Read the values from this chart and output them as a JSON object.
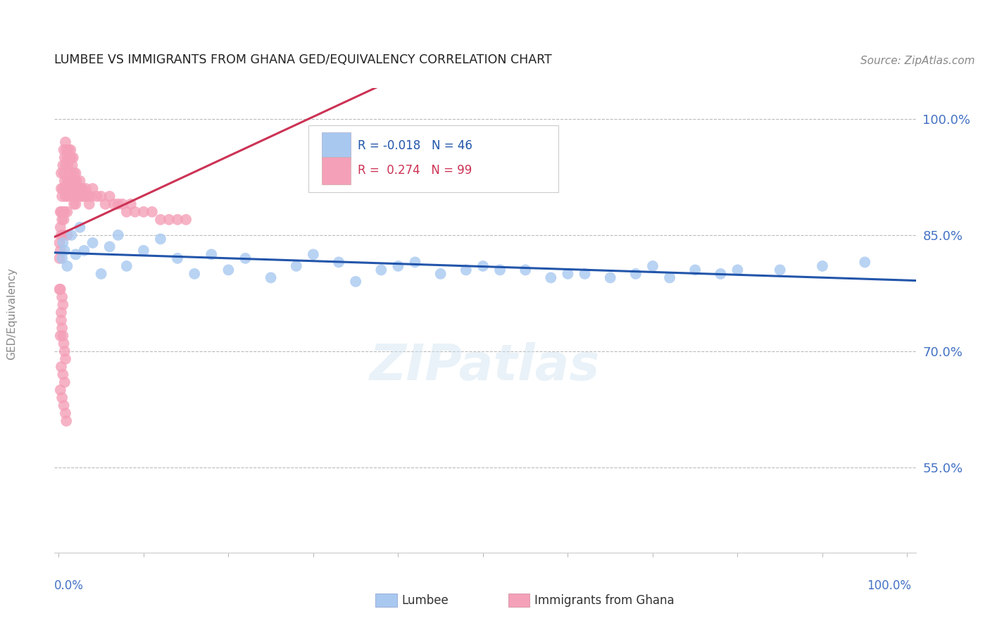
{
  "title": "LUMBEE VS IMMIGRANTS FROM GHANA GED/EQUIVALENCY CORRELATION CHART",
  "source": "Source: ZipAtlas.com",
  "ylabel": "GED/Equivalency",
  "legend_lumbee": "Lumbee",
  "legend_ghana": "Immigrants from Ghana",
  "R_lumbee": -0.018,
  "N_lumbee": 46,
  "R_ghana": 0.274,
  "N_ghana": 99,
  "yticks": [
    55.0,
    70.0,
    85.0,
    100.0
  ],
  "ymin": 44.0,
  "ymax": 104.0,
  "xmin": -0.5,
  "xmax": 101.0,
  "color_lumbee": "#A8C8F0",
  "color_ghana": "#F4A0B8",
  "trendline_lumbee": "#2255AA",
  "trendline_ghana": "#CC3355",
  "background_color": "#FFFFFF",
  "lumbee_x": [
    0.4,
    0.5,
    0.7,
    1.0,
    1.5,
    2.0,
    2.5,
    3.0,
    4.0,
    5.0,
    6.0,
    7.0,
    8.0,
    10.0,
    12.0,
    14.0,
    16.0,
    18.0,
    20.0,
    22.0,
    25.0,
    28.0,
    30.0,
    33.0,
    35.0,
    38.0,
    40.0,
    42.0,
    45.0,
    48.0,
    50.0,
    52.0,
    55.0,
    58.0,
    60.0,
    62.0,
    65.0,
    68.0,
    70.0,
    72.0,
    75.0,
    78.0,
    80.0,
    85.0,
    90.0,
    95.0
  ],
  "lumbee_y": [
    82.0,
    84.0,
    83.0,
    81.0,
    85.0,
    82.5,
    86.0,
    83.0,
    84.0,
    80.0,
    83.5,
    85.0,
    81.0,
    83.0,
    84.5,
    82.0,
    80.0,
    82.5,
    80.5,
    82.0,
    79.5,
    81.0,
    82.5,
    81.5,
    79.0,
    80.5,
    81.0,
    81.5,
    80.0,
    80.5,
    81.0,
    80.5,
    80.5,
    79.5,
    80.0,
    80.0,
    79.5,
    80.0,
    81.0,
    79.5,
    80.5,
    80.0,
    80.5,
    80.5,
    81.0,
    81.5
  ],
  "ghana_x": [
    0.1,
    0.1,
    0.1,
    0.2,
    0.2,
    0.2,
    0.3,
    0.3,
    0.3,
    0.3,
    0.4,
    0.4,
    0.5,
    0.5,
    0.5,
    0.5,
    0.6,
    0.6,
    0.6,
    0.7,
    0.7,
    0.7,
    0.8,
    0.8,
    0.8,
    0.9,
    0.9,
    1.0,
    1.0,
    1.0,
    1.0,
    1.1,
    1.1,
    1.2,
    1.2,
    1.3,
    1.3,
    1.4,
    1.4,
    1.5,
    1.5,
    1.6,
    1.6,
    1.7,
    1.7,
    1.8,
    1.8,
    1.9,
    2.0,
    2.0,
    2.1,
    2.2,
    2.3,
    2.4,
    2.5,
    2.6,
    2.7,
    2.8,
    3.0,
    3.2,
    3.4,
    3.6,
    3.8,
    4.0,
    4.5,
    5.0,
    5.5,
    6.0,
    6.5,
    7.0,
    7.5,
    8.0,
    8.5,
    9.0,
    10.0,
    11.0,
    12.0,
    13.0,
    14.0,
    15.0,
    0.2,
    0.3,
    0.4,
    0.5,
    0.3,
    0.2,
    0.4,
    0.6,
    0.5,
    0.7,
    0.8,
    0.3,
    0.5,
    0.7,
    0.2,
    0.4,
    0.6,
    0.8,
    0.9
  ],
  "ghana_y": [
    82.0,
    84.0,
    78.0,
    88.0,
    86.0,
    83.0,
    93.0,
    91.0,
    88.0,
    85.0,
    90.0,
    87.0,
    94.0,
    91.0,
    88.0,
    85.0,
    96.0,
    93.0,
    87.0,
    95.0,
    92.0,
    88.0,
    97.0,
    94.0,
    90.0,
    96.0,
    91.0,
    95.0,
    92.0,
    88.0,
    85.0,
    94.0,
    90.0,
    96.0,
    92.0,
    95.0,
    91.0,
    96.0,
    93.0,
    95.0,
    91.0,
    94.0,
    90.0,
    95.0,
    91.0,
    93.0,
    89.0,
    92.0,
    93.0,
    89.0,
    92.0,
    90.0,
    91.0,
    90.0,
    92.0,
    91.0,
    90.0,
    91.0,
    90.0,
    91.0,
    90.0,
    89.0,
    90.0,
    91.0,
    90.0,
    90.0,
    89.0,
    90.0,
    89.0,
    89.0,
    89.0,
    88.0,
    89.0,
    88.0,
    88.0,
    88.0,
    87.0,
    87.0,
    87.0,
    87.0,
    78.0,
    75.0,
    77.0,
    76.0,
    74.0,
    72.0,
    73.0,
    71.0,
    72.0,
    70.0,
    69.0,
    68.0,
    67.0,
    66.0,
    65.0,
    64.0,
    63.0,
    62.0,
    61.0
  ]
}
